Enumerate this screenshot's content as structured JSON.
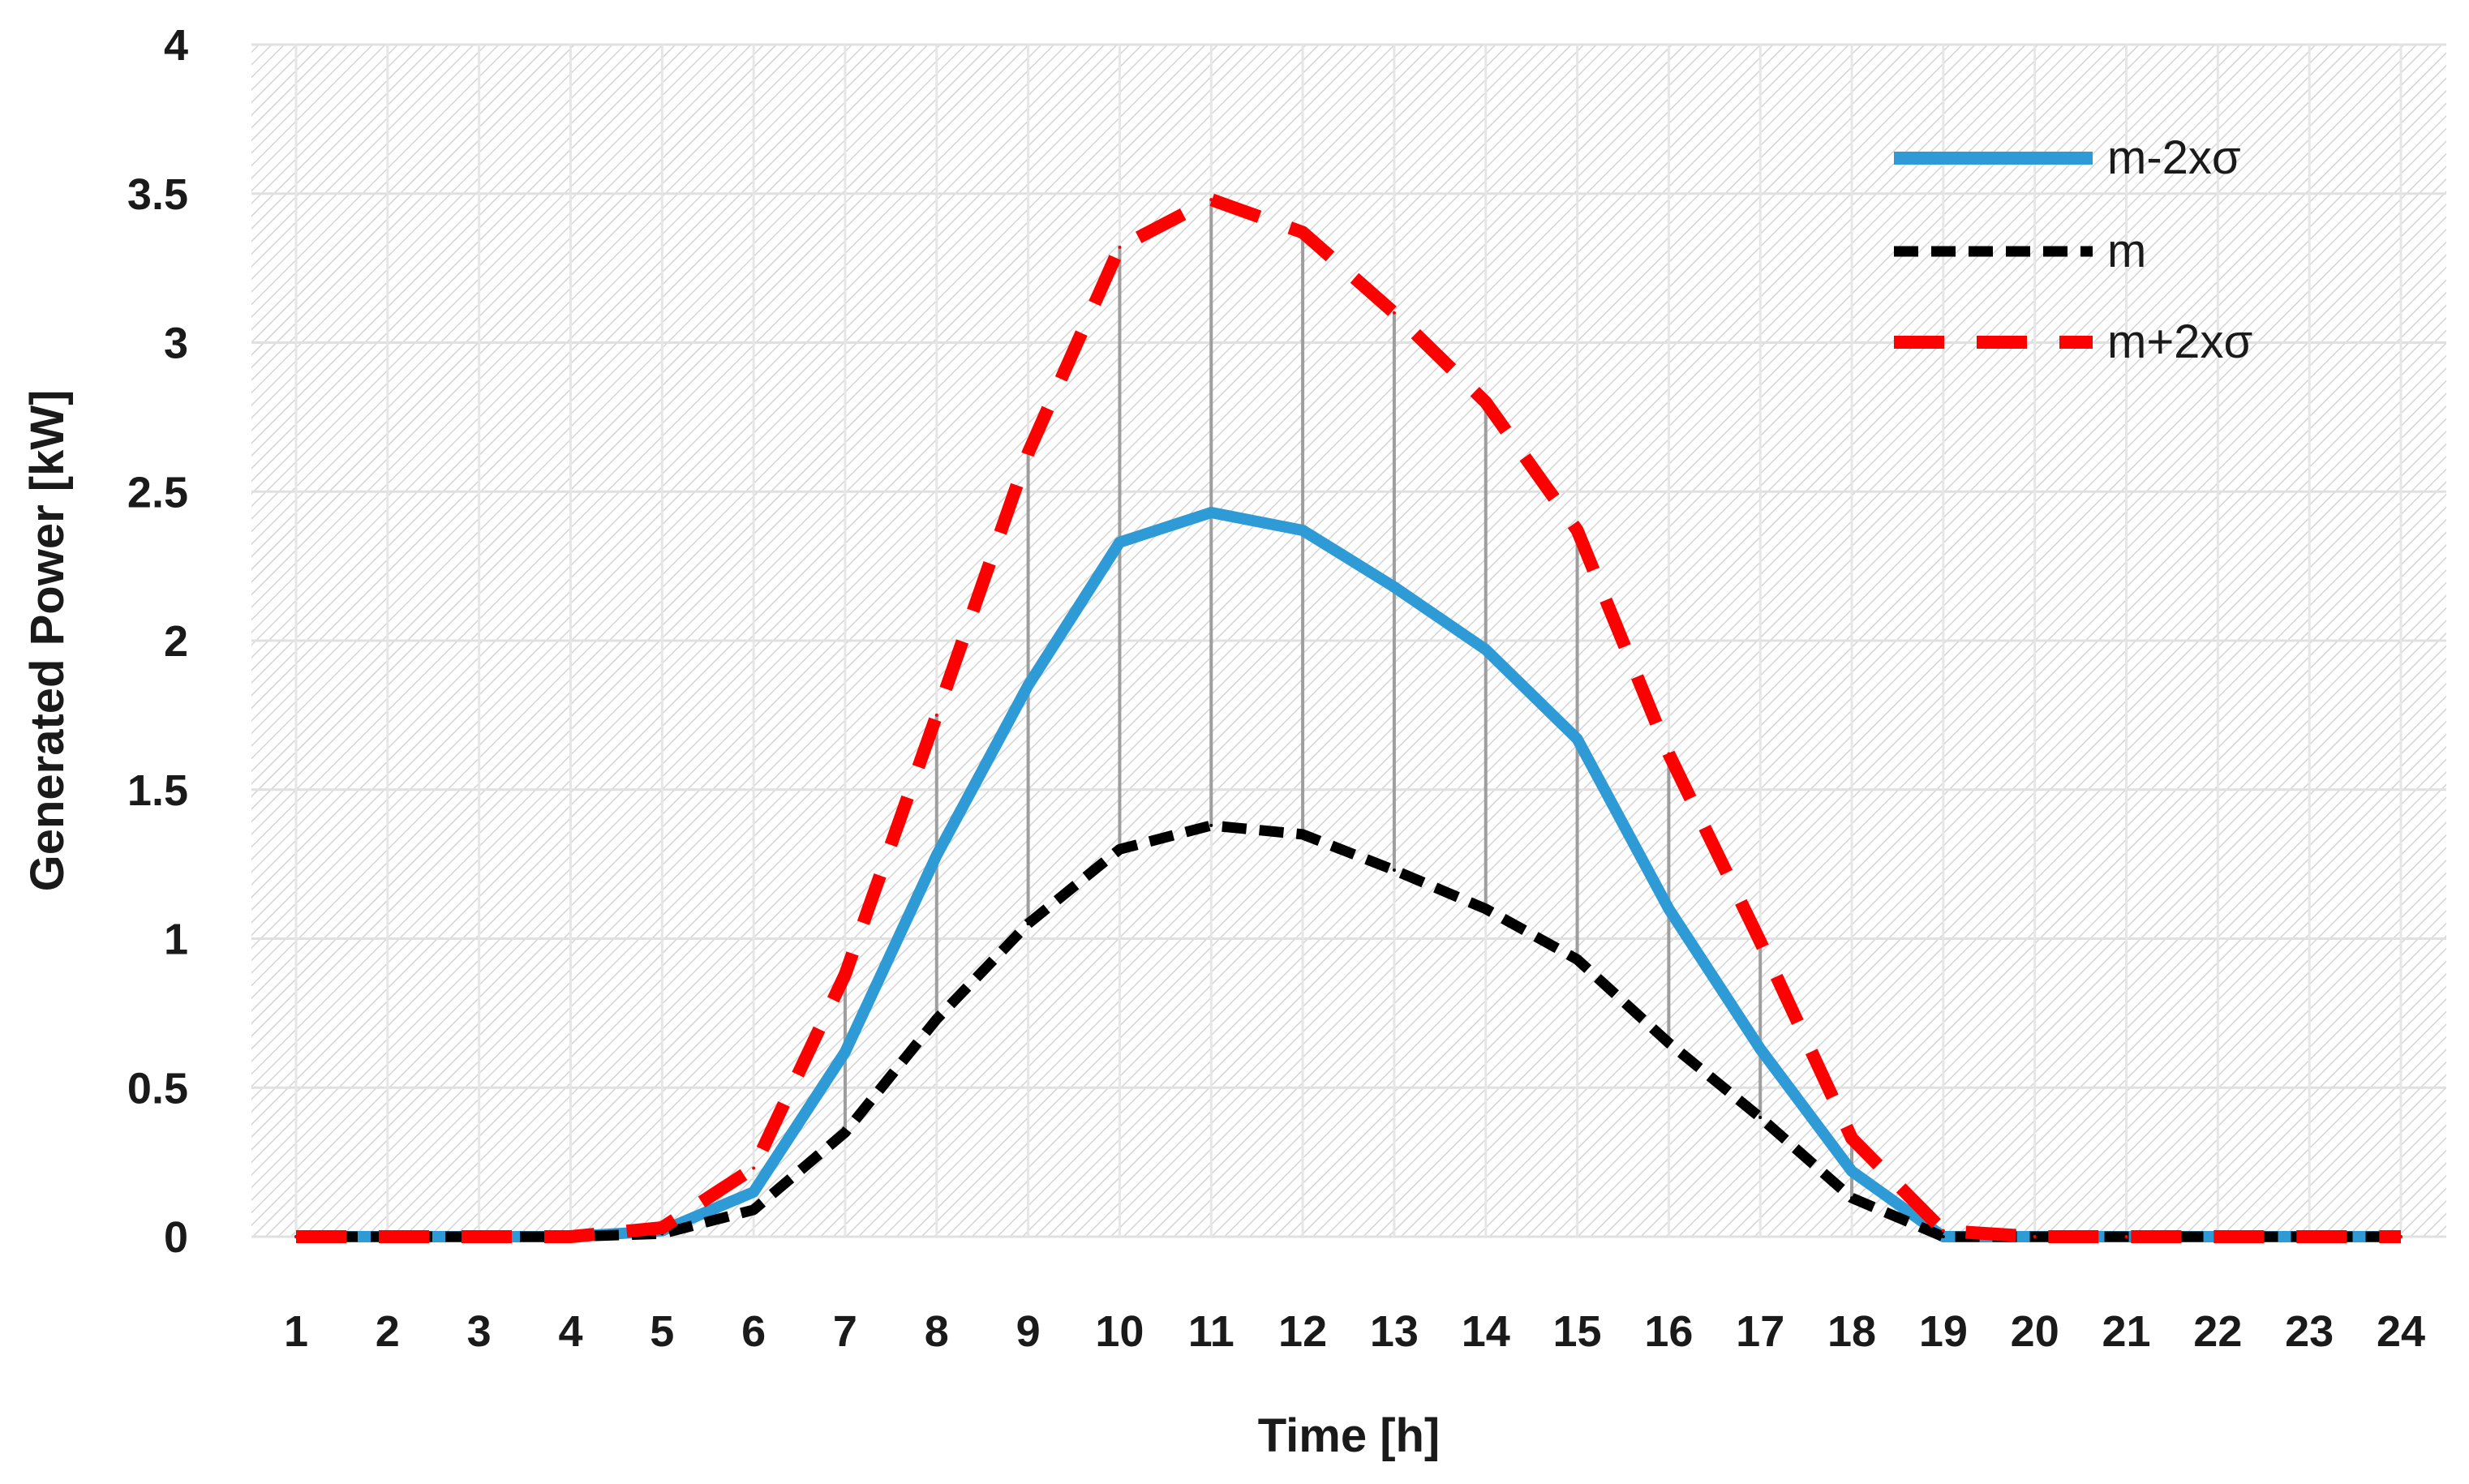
{
  "chart_data": {
    "type": "line",
    "xlabel": "Time [h]",
    "ylabel": "Generated Power [kW]",
    "ylim": [
      0,
      4
    ],
    "yticks": [
      "0",
      "0.5",
      "1",
      "1.5",
      "2",
      "2.5",
      "3",
      "3.5",
      "4"
    ],
    "x": [
      1,
      2,
      3,
      4,
      5,
      6,
      7,
      8,
      9,
      10,
      11,
      12,
      13,
      14,
      15,
      16,
      17,
      18,
      19,
      20,
      21,
      22,
      23,
      24
    ],
    "series": [
      {
        "name": "m-2xσ",
        "color": "#2e9bd6",
        "style": "solid",
        "values": [
          0,
          0,
          0,
          0,
          0.02,
          0.15,
          0.62,
          1.28,
          1.85,
          2.33,
          2.43,
          2.37,
          2.18,
          1.97,
          1.67,
          1.1,
          0.63,
          0.22,
          0,
          0,
          0,
          0,
          0,
          0
        ]
      },
      {
        "name": "m",
        "color": "#000000",
        "style": "dashed",
        "values": [
          0,
          0,
          0,
          0,
          0.01,
          0.09,
          0.35,
          0.73,
          1.05,
          1.3,
          1.38,
          1.35,
          1.23,
          1.1,
          0.93,
          0.65,
          0.4,
          0.13,
          0,
          0,
          0,
          0,
          0,
          0
        ]
      },
      {
        "name": "m+2xσ",
        "color": "#ff0000",
        "style": "long-dashed",
        "values": [
          0,
          0,
          0,
          0,
          0.03,
          0.23,
          0.88,
          1.75,
          2.63,
          3.32,
          3.48,
          3.37,
          3.1,
          2.8,
          2.37,
          1.62,
          0.99,
          0.33,
          0.02,
          0,
          0,
          0,
          0,
          0
        ]
      }
    ],
    "legend_position": "top-right",
    "grid": true
  }
}
